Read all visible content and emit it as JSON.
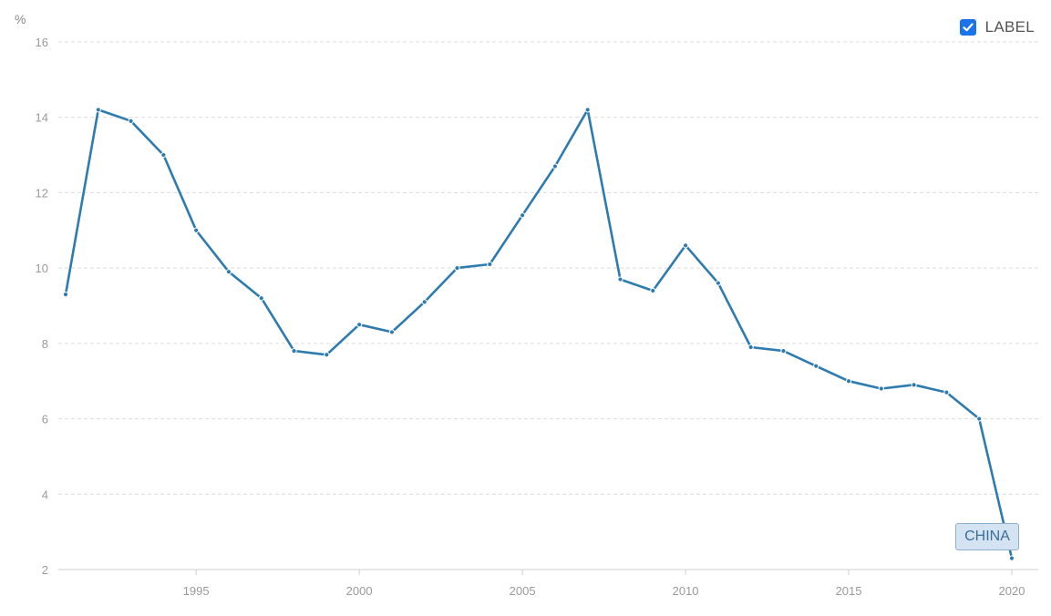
{
  "chart_data": {
    "type": "line",
    "unit_label": "%",
    "ylim": [
      2,
      16
    ],
    "yticks": [
      2,
      4,
      6,
      8,
      10,
      12,
      14,
      16
    ],
    "xlim": [
      1991,
      2020
    ],
    "xticks": [
      1995,
      2000,
      2005,
      2010,
      2015,
      2020
    ],
    "grid": true,
    "legend_position": "top-right",
    "series": [
      {
        "name": "CHINA",
        "color": "#2e7bb0",
        "x": [
          1991,
          1992,
          1993,
          1994,
          1995,
          1996,
          1997,
          1998,
          1999,
          2000,
          2001,
          2002,
          2003,
          2004,
          2005,
          2006,
          2007,
          2008,
          2009,
          2010,
          2011,
          2012,
          2013,
          2014,
          2015,
          2016,
          2017,
          2018,
          2019,
          2020
        ],
        "values": [
          9.3,
          14.2,
          13.9,
          13.0,
          11.0,
          9.9,
          9.2,
          7.8,
          7.7,
          8.5,
          8.3,
          9.1,
          10.0,
          10.1,
          11.4,
          12.7,
          14.2,
          9.7,
          9.4,
          10.6,
          9.6,
          7.9,
          7.8,
          7.4,
          7.0,
          6.8,
          6.9,
          6.7,
          6.0,
          2.3
        ]
      }
    ]
  },
  "legend": {
    "label": "LABEL",
    "checked": true,
    "accent_color": "#1a73e8"
  },
  "series_tag": {
    "label": "CHINA"
  }
}
